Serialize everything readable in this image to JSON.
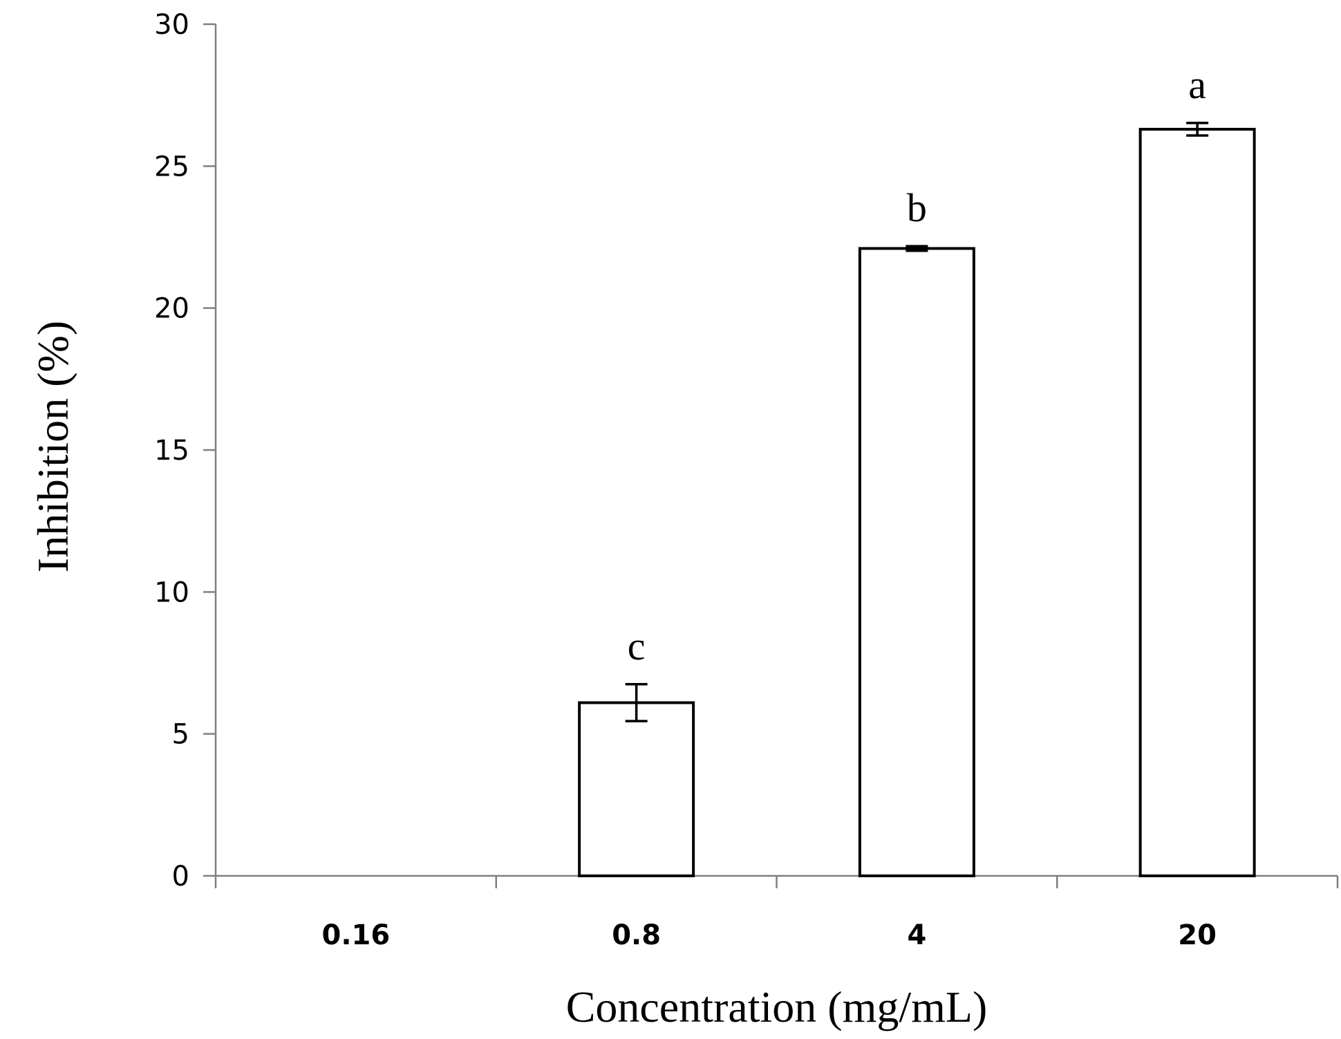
{
  "chart_data": {
    "type": "bar",
    "categories": [
      "0.16",
      "0.8",
      "4",
      "20"
    ],
    "values": [
      0,
      6.1,
      22.1,
      26.3
    ],
    "errors": [
      0,
      0.65,
      0.08,
      0.22
    ],
    "significance_labels": [
      "",
      "c",
      "b",
      "a"
    ],
    "xlabel": "Concentration (mg/mL)",
    "ylabel": "Inhibition (%)",
    "ylim": [
      0,
      30
    ],
    "yticks": [
      0,
      5,
      10,
      15,
      20,
      25,
      30
    ],
    "grid": false,
    "legend": "none",
    "colors": {
      "bar_fill": "#ffffff",
      "bar_stroke": "#000000",
      "axis": "#7f7f7f"
    }
  }
}
